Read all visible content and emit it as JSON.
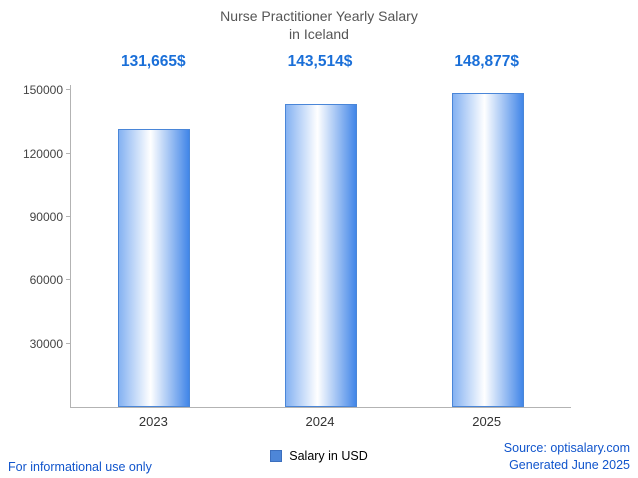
{
  "title": {
    "line1": "Nurse Practitioner Yearly Salary",
    "line2": "in Iceland"
  },
  "chart_data": {
    "type": "bar",
    "title": "Nurse Practitioner Yearly Salary in Iceland",
    "categories": [
      "2023",
      "2024",
      "2025"
    ],
    "series": [
      {
        "name": "Salary in USD",
        "values": [
          131665,
          143514,
          148877
        ],
        "value_labels": [
          "131,665$",
          "143,514$",
          "148,877$"
        ]
      }
    ],
    "xlabel": "",
    "ylabel": "",
    "y_ticks": [
      30000,
      60000,
      90000,
      120000,
      150000
    ],
    "ylim": [
      0,
      152500
    ],
    "grid": false,
    "legend_position": "bottom"
  },
  "legend": {
    "label": "Salary in USD"
  },
  "footer": {
    "left": "For informational use only",
    "source": "Source: optisalary.com",
    "generated": "Generated June 2025"
  },
  "colors": {
    "title": "#555555",
    "value_label": "#1a6fd8",
    "footer_link": "#1155cc",
    "axis": "#b3b3b3",
    "tick_text": "#444444",
    "bar_border": "#4a86d8",
    "bar_gradient_left": "#85b2f2",
    "bar_gradient_right": "#4286e8",
    "legend_swatch": "#4d86d8"
  }
}
